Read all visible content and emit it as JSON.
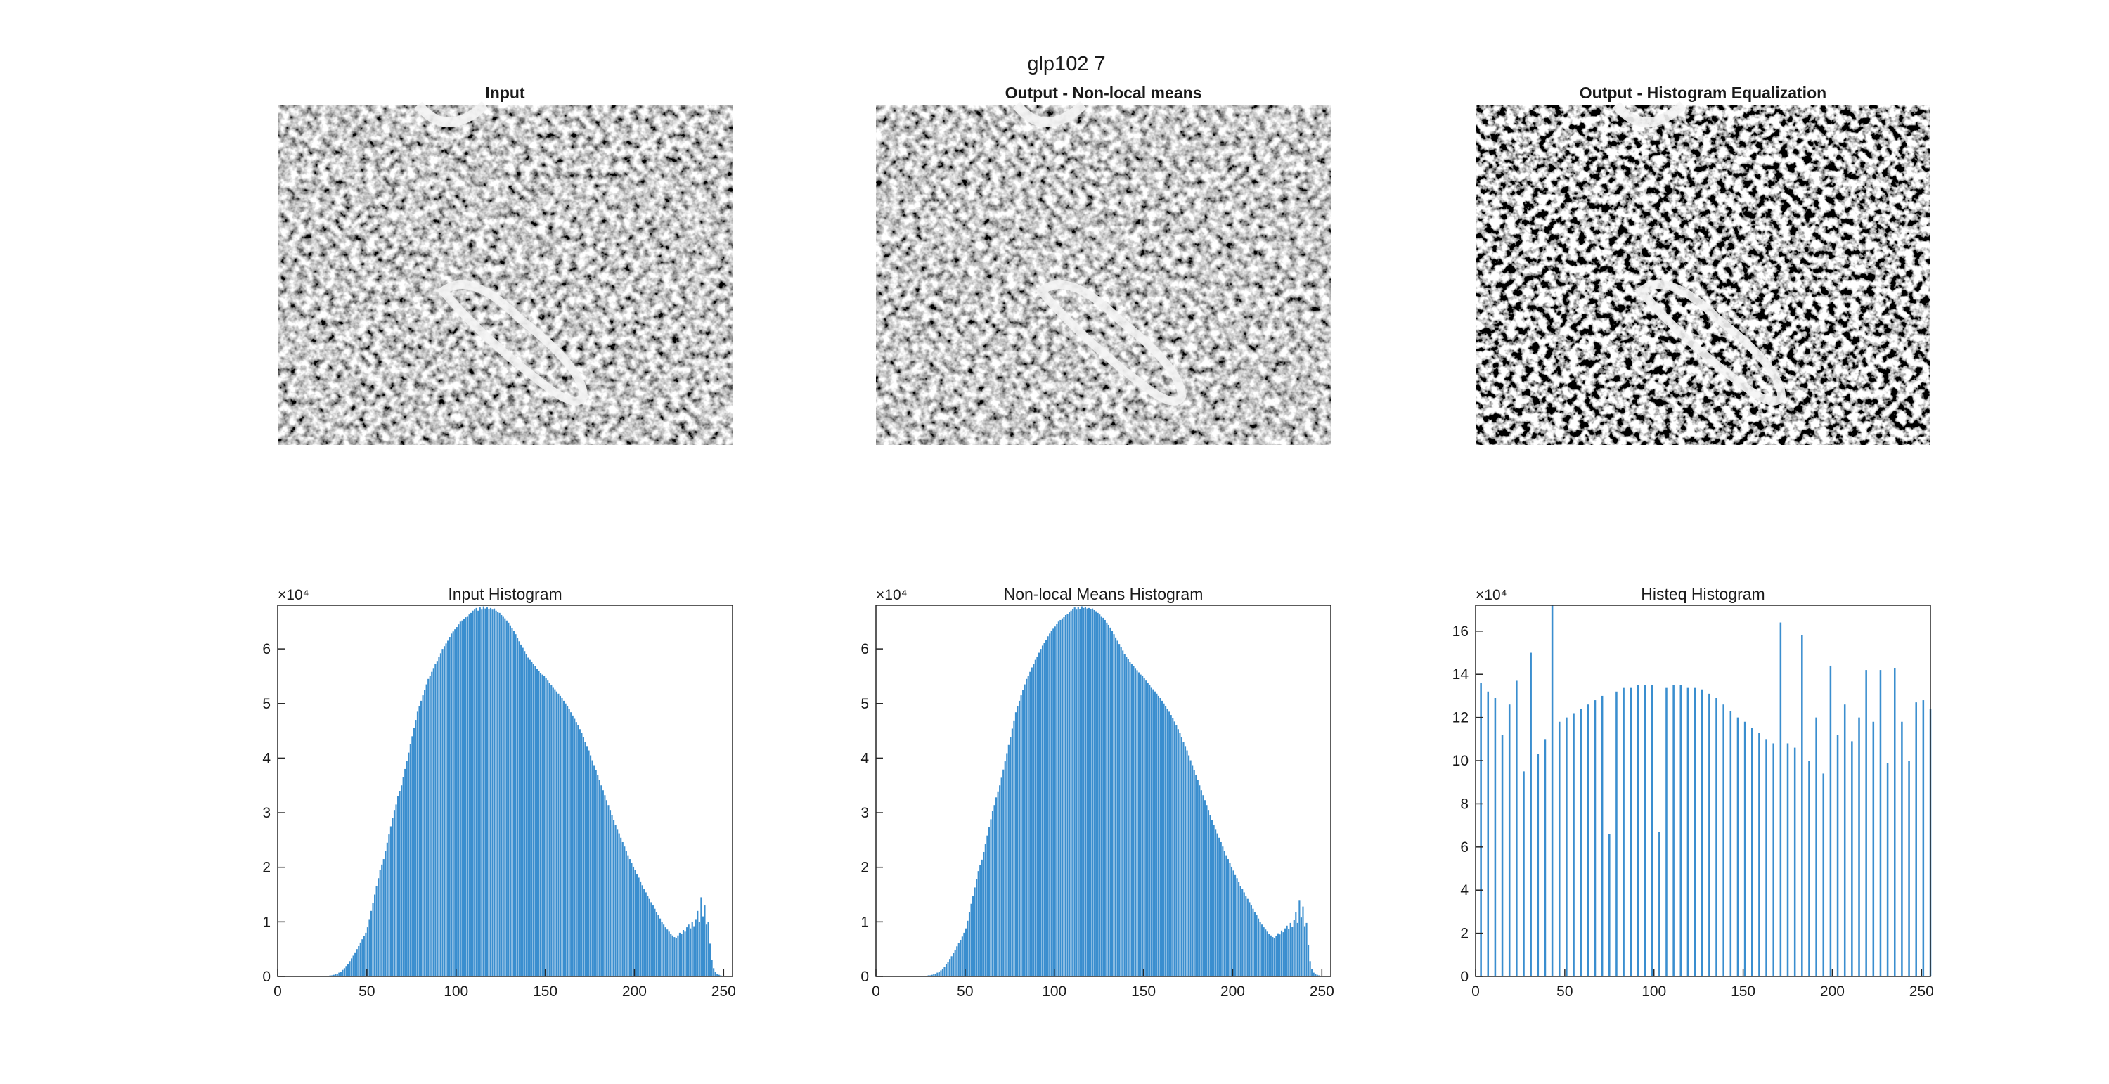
{
  "title": "glp102 7",
  "images": [
    {
      "title": "Input"
    },
    {
      "title": "Output - Non-local means"
    },
    {
      "title": "Output - Histogram Equalization"
    }
  ],
  "chart_data": [
    {
      "type": "histogram",
      "title": "Input Histogram",
      "y_multiplier": "×10⁴",
      "color": "#3a8ecf",
      "xlim": [
        0,
        255
      ],
      "xticks": [
        0,
        50,
        100,
        150,
        200,
        250
      ],
      "ylim": [
        0,
        6.8
      ],
      "yticks": [
        0,
        1,
        2,
        3,
        4,
        5,
        6
      ],
      "bins": [
        25,
        26,
        27,
        28,
        29,
        30,
        31,
        32,
        33,
        34,
        35,
        36,
        37,
        38,
        39,
        40,
        41,
        42,
        43,
        44,
        45,
        46,
        47,
        48,
        49,
        50,
        51,
        52,
        53,
        54,
        55,
        56,
        57,
        58,
        59,
        60,
        61,
        62,
        63,
        64,
        65,
        66,
        67,
        68,
        69,
        70,
        71,
        72,
        73,
        74,
        75,
        76,
        77,
        78,
        79,
        80,
        81,
        82,
        83,
        84,
        85,
        86,
        87,
        88,
        89,
        90,
        91,
        92,
        93,
        94,
        95,
        96,
        97,
        98,
        99,
        100,
        101,
        102,
        103,
        104,
        105,
        106,
        107,
        108,
        109,
        110,
        111,
        112,
        113,
        114,
        115,
        116,
        117,
        118,
        119,
        120,
        121,
        122,
        123,
        124,
        125,
        126,
        127,
        128,
        129,
        130,
        131,
        132,
        133,
        134,
        135,
        136,
        137,
        138,
        139,
        140,
        141,
        142,
        143,
        144,
        145,
        146,
        147,
        148,
        149,
        150,
        151,
        152,
        153,
        154,
        155,
        156,
        157,
        158,
        159,
        160,
        161,
        162,
        163,
        164,
        165,
        166,
        167,
        168,
        169,
        170,
        171,
        172,
        173,
        174,
        175,
        176,
        177,
        178,
        179,
        180,
        181,
        182,
        183,
        184,
        185,
        186,
        187,
        188,
        189,
        190,
        191,
        192,
        193,
        194,
        195,
        196,
        197,
        198,
        199,
        200,
        201,
        202,
        203,
        204,
        205,
        206,
        207,
        208,
        209,
        210,
        211,
        212,
        213,
        214,
        215,
        216,
        217,
        218,
        219,
        220,
        221,
        222,
        223,
        224,
        225,
        226,
        227,
        228,
        229,
        230,
        231,
        232,
        233,
        234,
        235,
        236,
        237,
        238,
        239,
        240,
        241,
        242,
        243,
        244,
        245,
        246,
        247,
        248,
        249,
        250,
        251,
        252,
        253,
        254,
        255
      ],
      "values": [
        0,
        0,
        0.01,
        0.01,
        0.02,
        0.02,
        0.03,
        0.04,
        0.05,
        0.07,
        0.09,
        0.12,
        0.15,
        0.19,
        0.23,
        0.28,
        0.33,
        0.38,
        0.44,
        0.5,
        0.56,
        0.62,
        0.68,
        0.74,
        0.8,
        0.9,
        1.05,
        1.2,
        1.35,
        1.5,
        1.65,
        1.8,
        1.95,
        2.05,
        2.15,
        2.3,
        2.45,
        2.6,
        2.75,
        2.9,
        3.05,
        3.15,
        3.3,
        3.4,
        3.5,
        3.65,
        3.8,
        3.95,
        4.1,
        4.25,
        4.4,
        4.55,
        4.7,
        4.85,
        4.95,
        5.05,
        5.15,
        5.25,
        5.35,
        5.45,
        5.5,
        5.58,
        5.65,
        5.72,
        5.78,
        5.85,
        5.92,
        6.0,
        6.05,
        6.1,
        6.15,
        6.22,
        6.28,
        6.32,
        6.36,
        6.4,
        6.45,
        6.5,
        6.52,
        6.55,
        6.58,
        6.6,
        6.63,
        6.66,
        6.7,
        6.72,
        6.75,
        6.7,
        6.76,
        6.72,
        6.78,
        6.74,
        6.76,
        6.73,
        6.75,
        6.72,
        6.74,
        6.7,
        6.68,
        6.66,
        6.62,
        6.6,
        6.56,
        6.52,
        6.48,
        6.43,
        6.38,
        6.33,
        6.27,
        6.2,
        6.14,
        6.08,
        6.02,
        5.96,
        5.9,
        5.84,
        5.8,
        5.76,
        5.72,
        5.68,
        5.64,
        5.6,
        5.56,
        5.53,
        5.5,
        5.46,
        5.42,
        5.38,
        5.34,
        5.3,
        5.26,
        5.22,
        5.18,
        5.14,
        5.1,
        5.05,
        5.0,
        4.95,
        4.9,
        4.84,
        4.78,
        4.72,
        4.66,
        4.6,
        4.53,
        4.46,
        4.38,
        4.3,
        4.22,
        4.14,
        4.05,
        3.96,
        3.87,
        3.78,
        3.69,
        3.6,
        3.5,
        3.41,
        3.32,
        3.23,
        3.14,
        3.05,
        2.96,
        2.87,
        2.78,
        2.7,
        2.62,
        2.54,
        2.46,
        2.38,
        2.3,
        2.22,
        2.15,
        2.08,
        2.01,
        1.95,
        1.88,
        1.81,
        1.74,
        1.67,
        1.6,
        1.54,
        1.48,
        1.42,
        1.36,
        1.3,
        1.24,
        1.18,
        1.12,
        1.06,
        1.0,
        0.95,
        0.9,
        0.86,
        0.82,
        0.78,
        0.75,
        0.72,
        0.7,
        0.75,
        0.8,
        0.78,
        0.85,
        0.82,
        0.9,
        0.95,
        0.88,
        1.0,
        0.92,
        1.05,
        1.2,
        1.0,
        1.45,
        1.1,
        1.3,
        0.95,
        1.0,
        0.6,
        0.3,
        0.15,
        0.08,
        0.05,
        0.03,
        0.02,
        0.01,
        0.01,
        0,
        0,
        0,
        0
      ]
    },
    {
      "type": "histogram",
      "title": "Non-local Means Histogram",
      "y_multiplier": "×10⁴",
      "color": "#3a8ecf",
      "xlim": [
        0,
        255
      ],
      "xticks": [
        0,
        50,
        100,
        150,
        200,
        250
      ],
      "ylim": [
        0,
        6.8
      ],
      "yticks": [
        0,
        1,
        2,
        3,
        4,
        5,
        6
      ],
      "bins": [
        25,
        26,
        27,
        28,
        29,
        30,
        31,
        32,
        33,
        34,
        35,
        36,
        37,
        38,
        39,
        40,
        41,
        42,
        43,
        44,
        45,
        46,
        47,
        48,
        49,
        50,
        51,
        52,
        53,
        54,
        55,
        56,
        57,
        58,
        59,
        60,
        61,
        62,
        63,
        64,
        65,
        66,
        67,
        68,
        69,
        70,
        71,
        72,
        73,
        74,
        75,
        76,
        77,
        78,
        79,
        80,
        81,
        82,
        83,
        84,
        85,
        86,
        87,
        88,
        89,
        90,
        91,
        92,
        93,
        94,
        95,
        96,
        97,
        98,
        99,
        100,
        101,
        102,
        103,
        104,
        105,
        106,
        107,
        108,
        109,
        110,
        111,
        112,
        113,
        114,
        115,
        116,
        117,
        118,
        119,
        120,
        121,
        122,
        123,
        124,
        125,
        126,
        127,
        128,
        129,
        130,
        131,
        132,
        133,
        134,
        135,
        136,
        137,
        138,
        139,
        140,
        141,
        142,
        143,
        144,
        145,
        146,
        147,
        148,
        149,
        150,
        151,
        152,
        153,
        154,
        155,
        156,
        157,
        158,
        159,
        160,
        161,
        162,
        163,
        164,
        165,
        166,
        167,
        168,
        169,
        170,
        171,
        172,
        173,
        174,
        175,
        176,
        177,
        178,
        179,
        180,
        181,
        182,
        183,
        184,
        185,
        186,
        187,
        188,
        189,
        190,
        191,
        192,
        193,
        194,
        195,
        196,
        197,
        198,
        199,
        200,
        201,
        202,
        203,
        204,
        205,
        206,
        207,
        208,
        209,
        210,
        211,
        212,
        213,
        214,
        215,
        216,
        217,
        218,
        219,
        220,
        221,
        222,
        223,
        224,
        225,
        226,
        227,
        228,
        229,
        230,
        231,
        232,
        233,
        234,
        235,
        236,
        237,
        238,
        239,
        240,
        241,
        242,
        243,
        244,
        245,
        246,
        247,
        248,
        249,
        250,
        251,
        252,
        253,
        254,
        255
      ],
      "values": [
        0,
        0,
        0.01,
        0.01,
        0.02,
        0.02,
        0.03,
        0.04,
        0.05,
        0.07,
        0.09,
        0.11,
        0.14,
        0.18,
        0.22,
        0.27,
        0.32,
        0.37,
        0.43,
        0.49,
        0.55,
        0.61,
        0.67,
        0.73,
        0.8,
        0.88,
        1.02,
        1.18,
        1.33,
        1.48,
        1.63,
        1.78,
        1.93,
        2.04,
        2.14,
        2.28,
        2.43,
        2.58,
        2.73,
        2.88,
        3.03,
        3.14,
        3.28,
        3.39,
        3.5,
        3.64,
        3.79,
        3.94,
        4.09,
        4.24,
        4.39,
        4.54,
        4.69,
        4.84,
        4.95,
        5.05,
        5.15,
        5.25,
        5.35,
        5.45,
        5.5,
        5.58,
        5.66,
        5.73,
        5.8,
        5.86,
        5.93,
        6.0,
        6.06,
        6.11,
        6.16,
        6.23,
        6.28,
        6.33,
        6.37,
        6.41,
        6.46,
        6.5,
        6.53,
        6.56,
        6.59,
        6.62,
        6.64,
        6.67,
        6.7,
        6.73,
        6.76,
        6.72,
        6.77,
        6.73,
        6.78,
        6.75,
        6.77,
        6.74,
        6.75,
        6.73,
        6.74,
        6.71,
        6.69,
        6.66,
        6.63,
        6.6,
        6.57,
        6.53,
        6.48,
        6.44,
        6.39,
        6.33,
        6.27,
        6.21,
        6.15,
        6.09,
        6.03,
        5.97,
        5.91,
        5.85,
        5.81,
        5.77,
        5.73,
        5.69,
        5.65,
        5.61,
        5.57,
        5.53,
        5.5,
        5.46,
        5.42,
        5.38,
        5.34,
        5.3,
        5.26,
        5.22,
        5.18,
        5.14,
        5.1,
        5.05,
        5.0,
        4.95,
        4.9,
        4.85,
        4.79,
        4.73,
        4.67,
        4.6,
        4.53,
        4.46,
        4.38,
        4.3,
        4.22,
        4.14,
        4.05,
        3.96,
        3.87,
        3.78,
        3.69,
        3.6,
        3.5,
        3.41,
        3.32,
        3.23,
        3.14,
        3.05,
        2.96,
        2.87,
        2.78,
        2.7,
        2.62,
        2.54,
        2.46,
        2.38,
        2.3,
        2.22,
        2.15,
        2.08,
        2.01,
        1.94,
        1.87,
        1.8,
        1.73,
        1.66,
        1.6,
        1.54,
        1.48,
        1.42,
        1.36,
        1.3,
        1.24,
        1.18,
        1.12,
        1.06,
        1.0,
        0.95,
        0.9,
        0.86,
        0.82,
        0.78,
        0.75,
        0.72,
        0.7,
        0.74,
        0.79,
        0.77,
        0.84,
        0.81,
        0.88,
        0.93,
        0.87,
        0.98,
        0.91,
        1.03,
        1.18,
        0.98,
        1.4,
        1.08,
        1.28,
        0.92,
        0.98,
        0.58,
        0.28,
        0.14,
        0.07,
        0.05,
        0.03,
        0.02,
        0.01,
        0.01,
        0,
        0,
        0,
        0
      ]
    },
    {
      "type": "bar",
      "title": "Histeq Histogram",
      "y_multiplier": "×10⁴",
      "color": "#3a8ecf",
      "xlim": [
        0,
        255
      ],
      "xticks": [
        0,
        50,
        100,
        150,
        200,
        250
      ],
      "ylim": [
        0,
        17.2
      ],
      "yticks": [
        0,
        2,
        4,
        6,
        8,
        10,
        12,
        14,
        16
      ],
      "x": [
        3,
        7,
        11,
        15,
        19,
        23,
        27,
        31,
        35,
        39,
        43,
        47,
        51,
        55,
        59,
        63,
        67,
        71,
        75,
        79,
        83,
        87,
        91,
        95,
        99,
        103,
        107,
        111,
        115,
        119,
        123,
        127,
        131,
        135,
        139,
        143,
        147,
        151,
        155,
        159,
        163,
        167,
        171,
        175,
        179,
        183,
        187,
        191,
        195,
        199,
        203,
        207,
        211,
        215,
        219,
        223,
        227,
        231,
        235,
        239,
        243,
        247,
        251,
        255
      ],
      "values": [
        13.6,
        13.2,
        12.9,
        11.2,
        12.6,
        13.7,
        9.5,
        15.0,
        10.3,
        11.0,
        17.2,
        11.8,
        12.0,
        12.2,
        12.4,
        12.6,
        12.8,
        13.0,
        6.6,
        13.2,
        13.4,
        13.4,
        13.5,
        13.5,
        13.5,
        6.7,
        13.4,
        13.5,
        13.5,
        13.4,
        13.4,
        13.3,
        13.1,
        12.9,
        12.6,
        12.3,
        12.0,
        11.8,
        11.5,
        11.3,
        11.0,
        10.8,
        16.4,
        10.8,
        10.6,
        15.8,
        10.0,
        12.0,
        9.4,
        14.4,
        11.2,
        12.6,
        10.9,
        12.0,
        14.2,
        11.8,
        14.2,
        9.9,
        14.3,
        11.8,
        10.0,
        12.7,
        12.8,
        12.4
      ]
    }
  ]
}
